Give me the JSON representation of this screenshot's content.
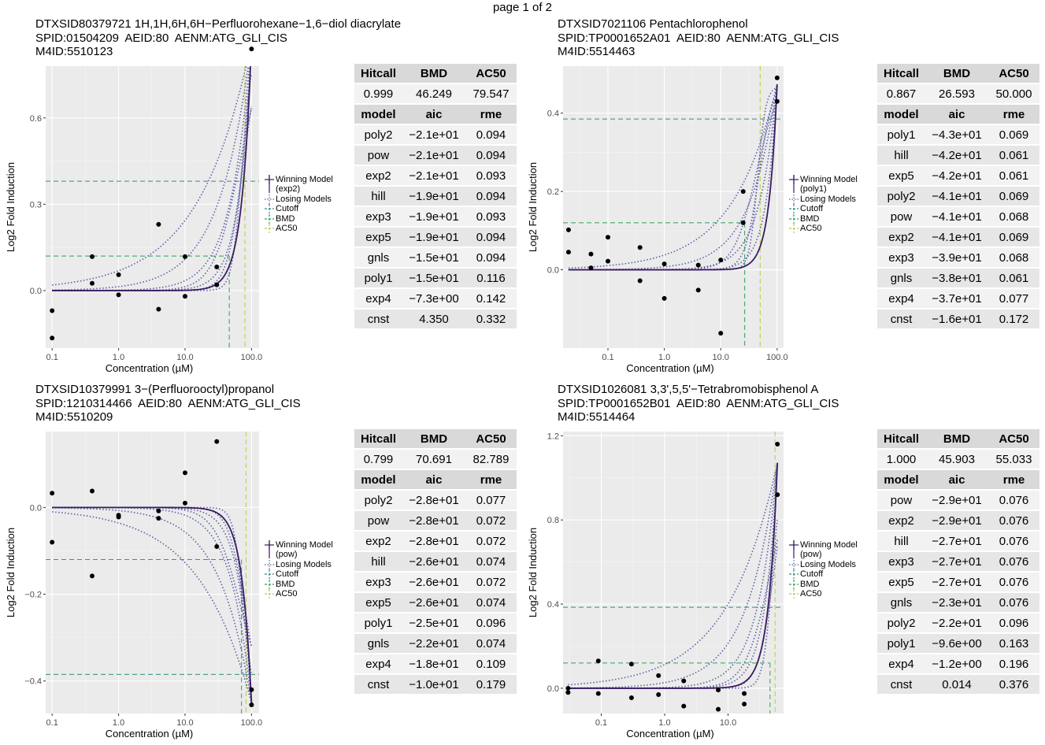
{
  "page_label": "page 1 of 2",
  "legend_labels": [
    "Winning Model",
    "Losing Models",
    "Cutoff",
    "BMD",
    "AC50"
  ],
  "table_headers": {
    "summary": [
      "Hitcall",
      "BMD",
      "AC50"
    ],
    "models": [
      "model",
      "aic",
      "rme"
    ]
  },
  "colors": {
    "winning": "#3b1b5e",
    "losing": "#5a5fa8",
    "cutoff": "#2f8f80",
    "bmd": "#2fa05a",
    "ac50": "#b5cf3a",
    "panel_bg": "#ebebeb"
  },
  "chart_data": [
    {
      "type": "scatter",
      "title_lines": [
        "DTXSID80379721 1H,1H,6H,6H−Perfluorohexane−1,6−diol diacrylate",
        "SPID:01504209  AEID:80  AENM:ATG_GLI_CIS",
        "M4ID:5510123"
      ],
      "xlabel": "Concentration (µM)",
      "ylabel": "Log2 Fold Induction",
      "x_scale": "log10",
      "xlim": [
        0.08,
        130
      ],
      "ylim": [
        -0.2,
        0.78
      ],
      "x_ticks": [
        0.1,
        1.0,
        10.0,
        100.0
      ],
      "x_tick_labels": [
        "0.1",
        "1.0",
        "10.0",
        "100.0"
      ],
      "y_ticks": [
        0.0,
        0.3,
        0.6
      ],
      "y_tick_labels": [
        "0.0",
        "0.3",
        "0.6"
      ],
      "winning_model_label": "(exp2)",
      "points": [
        [
          0.1,
          -0.07
        ],
        [
          0.1,
          -0.165
        ],
        [
          0.4,
          0.118
        ],
        [
          0.4,
          0.025
        ],
        [
          1.0,
          0.055
        ],
        [
          1.0,
          -0.015
        ],
        [
          4.0,
          0.23
        ],
        [
          4.0,
          -0.065
        ],
        [
          10.0,
          0.118
        ],
        [
          10.0,
          -0.02
        ],
        [
          30.0,
          0.082
        ],
        [
          30.0,
          0.02
        ],
        [
          100.0,
          0.84
        ]
      ],
      "cutoff": 0.38,
      "bmd": 46.249,
      "ac50": 79.547,
      "bmr": 0.12,
      "hitcall": "0.999",
      "bmd_label": "46.249",
      "ac50_label": "79.547",
      "models": [
        {
          "model": "poly2",
          "aic": "−2.1e+01",
          "rme": "0.094"
        },
        {
          "model": "pow",
          "aic": "−2.1e+01",
          "rme": "0.094"
        },
        {
          "model": "exp2",
          "aic": "−2.1e+01",
          "rme": "0.093"
        },
        {
          "model": "hill",
          "aic": "−1.9e+01",
          "rme": "0.094"
        },
        {
          "model": "exp3",
          "aic": "−1.9e+01",
          "rme": "0.093"
        },
        {
          "model": "exp5",
          "aic": "−1.9e+01",
          "rme": "0.094"
        },
        {
          "model": "gnls",
          "aic": "−1.5e+01",
          "rme": "0.094"
        },
        {
          "model": "poly1",
          "aic": "−1.5e+01",
          "rme": "0.116"
        },
        {
          "model": "exp4",
          "aic": "−7.3e+00",
          "rme": "0.142"
        },
        {
          "model": "cnst",
          "aic": "4.350",
          "rme": "0.332"
        }
      ]
    },
    {
      "type": "scatter",
      "title_lines": [
        "DTXSID7021106 Pentachlorophenol",
        "SPID:TP0001652A01  AEID:80  AENM:ATG_GLI_CIS",
        "M4ID:5514463"
      ],
      "xlabel": "Concentration (µM)",
      "ylabel": "Log2 Fold Induction",
      "x_scale": "log10",
      "xlim": [
        0.016,
        130
      ],
      "ylim": [
        -0.2,
        0.52
      ],
      "x_ticks": [
        0.1,
        1.0,
        10.0,
        100.0
      ],
      "x_tick_labels": [
        "0.1",
        "1.0",
        "10.0",
        "100.0"
      ],
      "y_ticks": [
        0.0,
        0.2,
        0.4
      ],
      "y_tick_labels": [
        "0.0",
        "0.2",
        "0.4"
      ],
      "winning_model_label": "(poly1)",
      "points": [
        [
          0.02,
          0.102
        ],
        [
          0.02,
          0.045
        ],
        [
          0.05,
          0.04
        ],
        [
          0.05,
          0.005
        ],
        [
          0.1,
          0.083
        ],
        [
          0.1,
          0.022
        ],
        [
          0.37,
          0.057
        ],
        [
          0.37,
          -0.028
        ],
        [
          1.0,
          0.015
        ],
        [
          1.0,
          -0.073
        ],
        [
          4.0,
          0.012
        ],
        [
          4.0,
          -0.052
        ],
        [
          10.0,
          0.025
        ],
        [
          10.0,
          -0.162
        ],
        [
          25.0,
          0.2
        ],
        [
          25.0,
          0.12
        ],
        [
          100.0,
          0.49
        ],
        [
          100.0,
          0.43
        ]
      ],
      "cutoff": 0.385,
      "bmd": 26.593,
      "ac50": 50.0,
      "bmr": 0.12,
      "hitcall": "0.867",
      "bmd_label": "26.593",
      "ac50_label": "50.000",
      "models": [
        {
          "model": "poly1",
          "aic": "−4.3e+01",
          "rme": "0.069"
        },
        {
          "model": "hill",
          "aic": "−4.2e+01",
          "rme": "0.061"
        },
        {
          "model": "exp5",
          "aic": "−4.2e+01",
          "rme": "0.061"
        },
        {
          "model": "poly2",
          "aic": "−4.1e+01",
          "rme": "0.069"
        },
        {
          "model": "pow",
          "aic": "−4.1e+01",
          "rme": "0.068"
        },
        {
          "model": "exp2",
          "aic": "−4.1e+01",
          "rme": "0.069"
        },
        {
          "model": "exp3",
          "aic": "−3.9e+01",
          "rme": "0.068"
        },
        {
          "model": "gnls",
          "aic": "−3.8e+01",
          "rme": "0.061"
        },
        {
          "model": "exp4",
          "aic": "−3.7e+01",
          "rme": "0.077"
        },
        {
          "model": "cnst",
          "aic": "−1.6e+01",
          "rme": "0.172"
        }
      ]
    },
    {
      "type": "scatter",
      "title_lines": [
        "DTXSID10379991 3−(Perfluorooctyl)propanol",
        "SPID:1210314466  AEID:80  AENM:ATG_GLI_CIS",
        "M4ID:5510209"
      ],
      "xlabel": "Concentration (µM)",
      "ylabel": "Log2 Fold Induction",
      "x_scale": "log10",
      "xlim": [
        0.08,
        130
      ],
      "ylim": [
        -0.475,
        0.175
      ],
      "x_ticks": [
        0.1,
        1.0,
        10.0,
        100.0
      ],
      "x_tick_labels": [
        "0.1",
        "1.0",
        "10.0",
        "100.0"
      ],
      "y_ticks": [
        -0.4,
        -0.2,
        0.0
      ],
      "y_tick_labels": [
        "−0.4",
        "−0.2",
        "0.0"
      ],
      "winning_model_label": "(pow)",
      "points": [
        [
          0.1,
          0.033
        ],
        [
          0.1,
          -0.08
        ],
        [
          0.4,
          0.038
        ],
        [
          0.4,
          -0.158
        ],
        [
          1.0,
          -0.018
        ],
        [
          1.0,
          -0.022
        ],
        [
          4.0,
          -0.008
        ],
        [
          4.0,
          -0.025
        ],
        [
          10.0,
          0.08
        ],
        [
          10.0,
          0.01
        ],
        [
          30.0,
          0.152
        ],
        [
          30.0,
          -0.09
        ],
        [
          100.0,
          -0.42
        ],
        [
          100.0,
          -0.455
        ]
      ],
      "cutoff": -0.385,
      "bmd": 70.691,
      "ac50": 82.789,
      "bmr": -0.12,
      "hitcall": "0.799",
      "bmd_label": "70.691",
      "ac50_label": "82.789",
      "models": [
        {
          "model": "poly2",
          "aic": "−2.8e+01",
          "rme": "0.077"
        },
        {
          "model": "pow",
          "aic": "−2.8e+01",
          "rme": "0.072"
        },
        {
          "model": "exp2",
          "aic": "−2.8e+01",
          "rme": "0.072"
        },
        {
          "model": "hill",
          "aic": "−2.6e+01",
          "rme": "0.074"
        },
        {
          "model": "exp3",
          "aic": "−2.6e+01",
          "rme": "0.072"
        },
        {
          "model": "exp5",
          "aic": "−2.6e+01",
          "rme": "0.074"
        },
        {
          "model": "poly1",
          "aic": "−2.5e+01",
          "rme": "0.096"
        },
        {
          "model": "gnls",
          "aic": "−2.2e+01",
          "rme": "0.074"
        },
        {
          "model": "exp4",
          "aic": "−1.8e+01",
          "rme": "0.109"
        },
        {
          "model": "cnst",
          "aic": "−1.0e+01",
          "rme": "0.179"
        }
      ]
    },
    {
      "type": "scatter",
      "title_lines": [
        "DTXSID1026081 3,3',5,5'−Tetrabromobisphenol A",
        "SPID:TP0001652B01  AEID:80  AENM:ATG_GLI_CIS",
        "M4ID:5514464"
      ],
      "xlabel": "Concentration (µM)",
      "ylabel": "Log2 Fold Induction",
      "x_scale": "log10",
      "xlim": [
        0.025,
        75
      ],
      "ylim": [
        -0.12,
        1.22
      ],
      "x_ticks": [
        0.1,
        1.0,
        10.0
      ],
      "x_tick_labels": [
        "0.1",
        "1.0",
        "10.0"
      ],
      "y_ticks": [
        0.0,
        0.4,
        0.8,
        1.2
      ],
      "y_tick_labels": [
        "0.0",
        "0.4",
        "0.8",
        "1.2"
      ],
      "winning_model_label": "(pow)",
      "points": [
        [
          0.03,
          0.0
        ],
        [
          0.03,
          -0.02
        ],
        [
          0.09,
          0.13
        ],
        [
          0.09,
          -0.025
        ],
        [
          0.3,
          0.115
        ],
        [
          0.3,
          -0.045
        ],
        [
          0.8,
          0.06
        ],
        [
          0.8,
          -0.03
        ],
        [
          2.0,
          0.035
        ],
        [
          2.0,
          -0.085
        ],
        [
          7.0,
          -0.008
        ],
        [
          7.0,
          -0.1
        ],
        [
          18.0,
          -0.025
        ],
        [
          18.0,
          -0.075
        ],
        [
          60.0,
          1.16
        ],
        [
          60.0,
          0.92
        ]
      ],
      "cutoff": 0.385,
      "bmd": 45.903,
      "ac50": 55.033,
      "bmr": 0.12,
      "hitcall": "1.000",
      "bmd_label": "45.903",
      "ac50_label": "55.033",
      "models": [
        {
          "model": "pow",
          "aic": "−2.9e+01",
          "rme": "0.076"
        },
        {
          "model": "exp2",
          "aic": "−2.9e+01",
          "rme": "0.076"
        },
        {
          "model": "hill",
          "aic": "−2.7e+01",
          "rme": "0.076"
        },
        {
          "model": "exp3",
          "aic": "−2.7e+01",
          "rme": "0.076"
        },
        {
          "model": "exp5",
          "aic": "−2.7e+01",
          "rme": "0.076"
        },
        {
          "model": "gnls",
          "aic": "−2.3e+01",
          "rme": "0.076"
        },
        {
          "model": "poly2",
          "aic": "−2.2e+01",
          "rme": "0.096"
        },
        {
          "model": "poly1",
          "aic": "−9.6e+00",
          "rme": "0.163"
        },
        {
          "model": "exp4",
          "aic": "−1.2e+00",
          "rme": "0.196"
        },
        {
          "model": "cnst",
          "aic": "0.014",
          "rme": "0.376"
        }
      ]
    }
  ]
}
